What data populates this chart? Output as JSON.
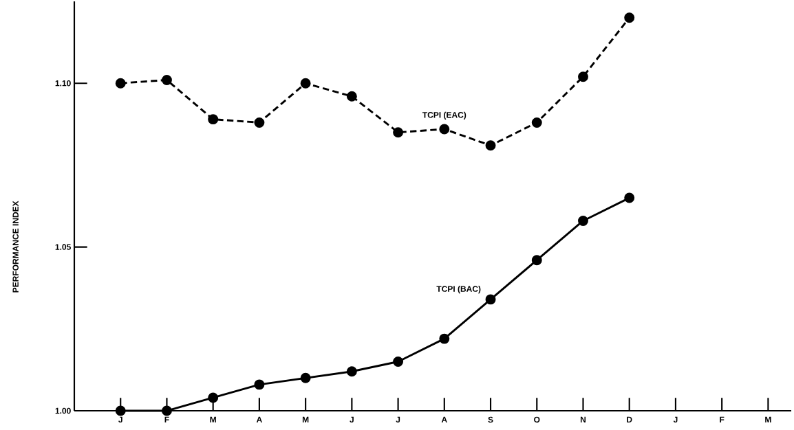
{
  "chart_data": {
    "type": "line",
    "ylabel": "PERFORMANCE INDEX",
    "categories": [
      "J",
      "F",
      "M",
      "A",
      "M",
      "J",
      "J",
      "A",
      "S",
      "O",
      "N",
      "D",
      "J",
      "F",
      "M"
    ],
    "series": [
      {
        "name": "TCPI (EAC)",
        "color": "#000000",
        "line_style": "dashed",
        "values": [
          1.1,
          1.101,
          1.089,
          1.088,
          1.1,
          1.096,
          1.085,
          1.086,
          1.081,
          1.088,
          1.102,
          1.12,
          null,
          null,
          null
        ]
      },
      {
        "name": "TCPI (BAC)",
        "color": "#000000",
        "line_style": "solid",
        "values": [
          1.0,
          1.0,
          1.004,
          1.008,
          1.01,
          1.012,
          1.015,
          1.022,
          1.034,
          1.046,
          1.058,
          1.065,
          null,
          null,
          null
        ]
      }
    ],
    "marker": "circle",
    "ylim": [
      1.0,
      1.125
    ],
    "yticks": [
      {
        "value": 1.0,
        "label": "1.00"
      },
      {
        "value": 1.05,
        "label": "1.05"
      },
      {
        "value": 1.1,
        "label": "1.10"
      }
    ],
    "grid": false,
    "legend": false
  }
}
